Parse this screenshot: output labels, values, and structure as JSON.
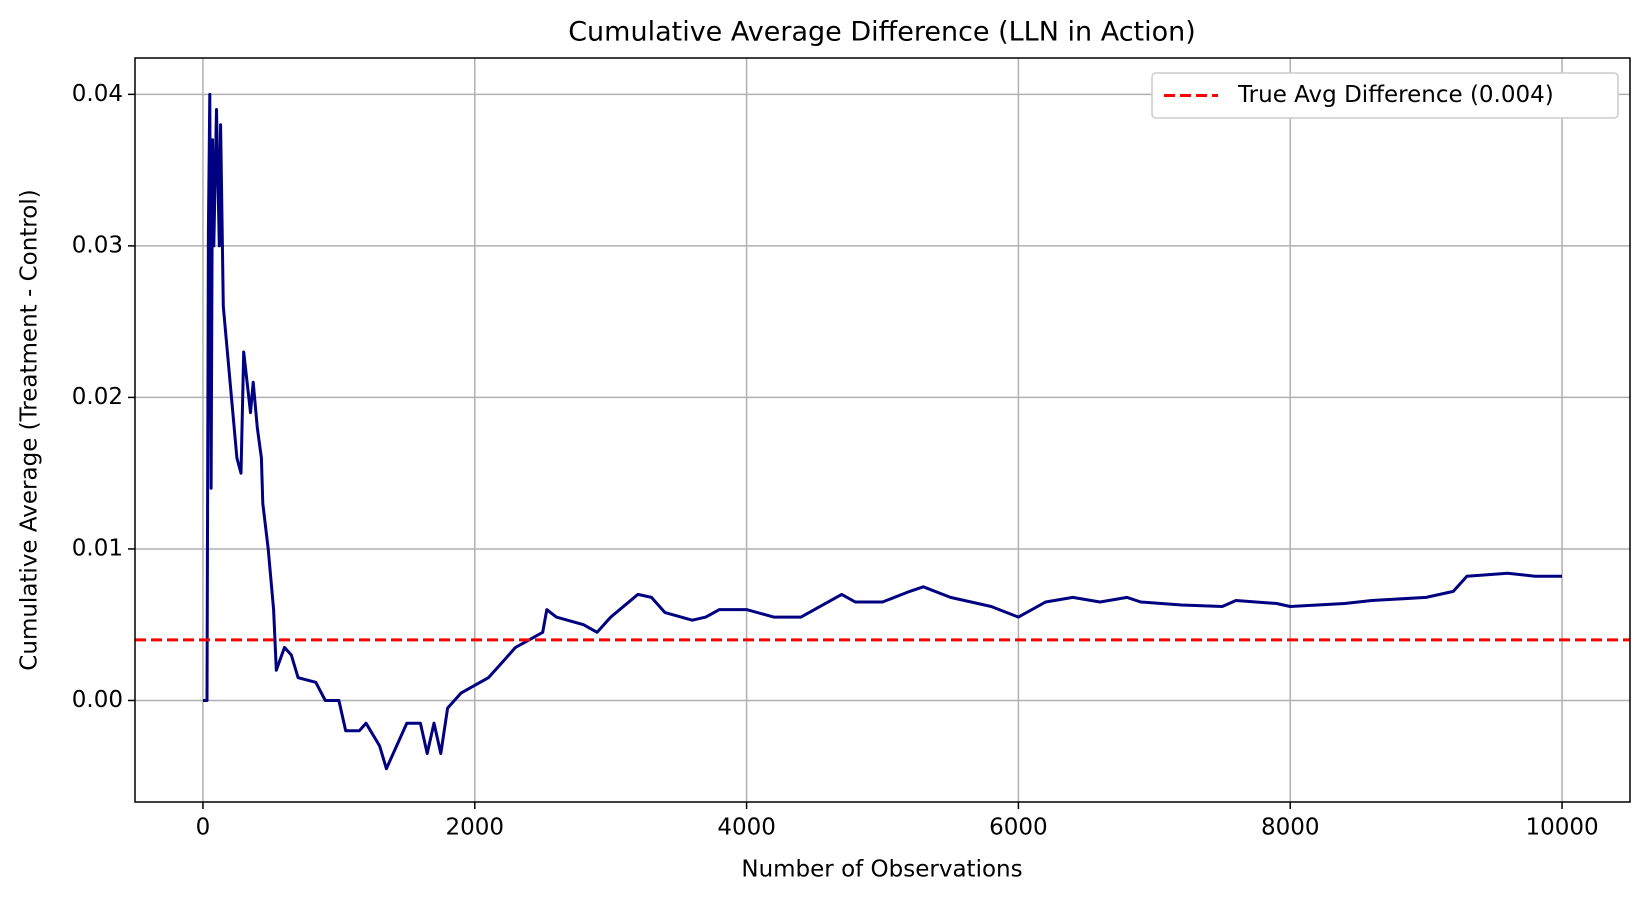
{
  "chart_data": {
    "type": "line",
    "title": "Cumulative Average Difference (LLN in Action)",
    "xlabel": "Number of Observations",
    "ylabel": "Cumulative Average (Treatment - Control)",
    "series": [
      {
        "color": "#000080",
        "x": [
          0,
          30,
          40,
          50,
          60,
          70,
          80,
          100,
          120,
          130,
          150,
          200,
          250,
          280,
          300,
          350,
          370,
          400,
          430,
          440,
          480,
          500,
          520,
          540,
          600,
          650,
          700,
          830,
          900,
          1000,
          1050,
          1150,
          1200,
          1300,
          1350,
          1450,
          1500,
          1600,
          1650,
          1700,
          1750,
          1800,
          1850,
          1900,
          2000,
          2100,
          2200,
          2300,
          2400,
          2500,
          2530,
          2600,
          2800,
          2900,
          3000,
          3200,
          3300,
          3400,
          3600,
          3700,
          3800,
          4000,
          4200,
          4400,
          4500,
          4700,
          4800,
          5000,
          5200,
          5300,
          5500,
          5800,
          6000,
          6200,
          6400,
          6600,
          6800,
          6900,
          7200,
          7500,
          7600,
          7900,
          8000,
          8400,
          8600,
          9000,
          9200,
          9300,
          9600,
          9800,
          10000
        ],
        "values": [
          0,
          0,
          0.031,
          0.04,
          0.014,
          0.037,
          0.03,
          0.039,
          0.03,
          0.038,
          0.026,
          0.021,
          0.016,
          0.015,
          0.023,
          0.019,
          0.021,
          0.018,
          0.016,
          0.013,
          0.01,
          0.008,
          0.006,
          0.002,
          0.0035,
          0.003,
          0.0015,
          0.0012,
          0,
          0,
          -0.002,
          -0.002,
          -0.0015,
          -0.003,
          -0.0045,
          -0.0025,
          -0.0015,
          -0.0015,
          -0.0035,
          -0.0015,
          -0.0035,
          -0.0005,
          0,
          0.0005,
          0.001,
          0.0015,
          0.0025,
          0.0035,
          0.004,
          0.0045,
          0.006,
          0.0055,
          0.005,
          0.0045,
          0.0055,
          0.007,
          0.0068,
          0.0058,
          0.0053,
          0.0055,
          0.006,
          0.006,
          0.0055,
          0.0055,
          0.006,
          0.007,
          0.0065,
          0.0065,
          0.0072,
          0.0075,
          0.0068,
          0.0062,
          0.0055,
          0.0065,
          0.0068,
          0.0065,
          0.0068,
          0.0065,
          0.0063,
          0.0062,
          0.0066,
          0.0064,
          0.0062,
          0.0064,
          0.0066,
          0.0068,
          0.0072,
          0.0082,
          0.0084,
          0.0082,
          0.0082
        ]
      }
    ],
    "hlines": [
      {
        "value": 0.004,
        "label": "True Avg Difference (0.004)",
        "color": "#ff0000",
        "style": "dashed"
      }
    ],
    "xlim": [
      -500,
      10500
    ],
    "xticks": [
      0,
      2000,
      4000,
      6000,
      8000,
      10000
    ],
    "ylim": [
      -0.0067,
      0.0424
    ],
    "yticks": [
      {
        "value": 0,
        "label": "0.00"
      },
      0.01,
      0.02,
      0.03,
      0.04
    ],
    "grid": true,
    "legend": "upper right"
  }
}
